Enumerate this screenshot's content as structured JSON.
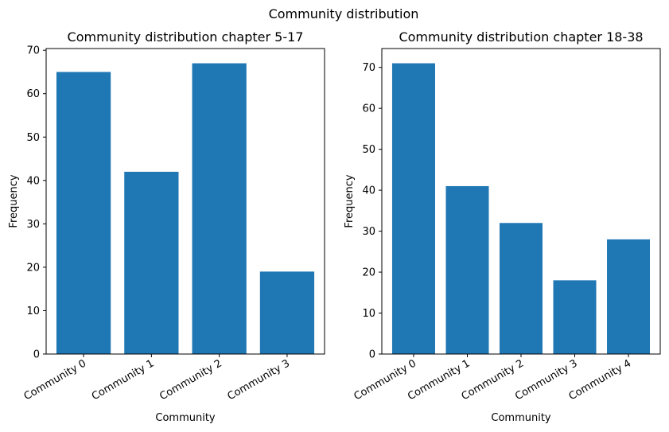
{
  "figure": {
    "suptitle": "Community distribution"
  },
  "chart_data": [
    {
      "type": "bar",
      "title": "Community distribution chapter 5-17",
      "xlabel": "Community",
      "ylabel": "Frequency",
      "categories": [
        "Community 0",
        "Community 1",
        "Community 2",
        "Community 3"
      ],
      "values": [
        65,
        42,
        67,
        19
      ],
      "ylim": [
        0,
        70.4
      ],
      "yticks": [
        0,
        10,
        20,
        30,
        40,
        50,
        60,
        70
      ],
      "bar_color": "#1f77b4",
      "grid": false
    },
    {
      "type": "bar",
      "title": "Community distribution chapter 18-38",
      "xlabel": "Community",
      "ylabel": "Frequency",
      "categories": [
        "Community 0",
        "Community 1",
        "Community 2",
        "Community 3",
        "Community 4"
      ],
      "values": [
        71,
        41,
        32,
        18,
        28
      ],
      "ylim": [
        0,
        74.6
      ],
      "yticks": [
        0,
        10,
        20,
        30,
        40,
        50,
        60,
        70
      ],
      "bar_color": "#1f77b4",
      "grid": false
    }
  ]
}
